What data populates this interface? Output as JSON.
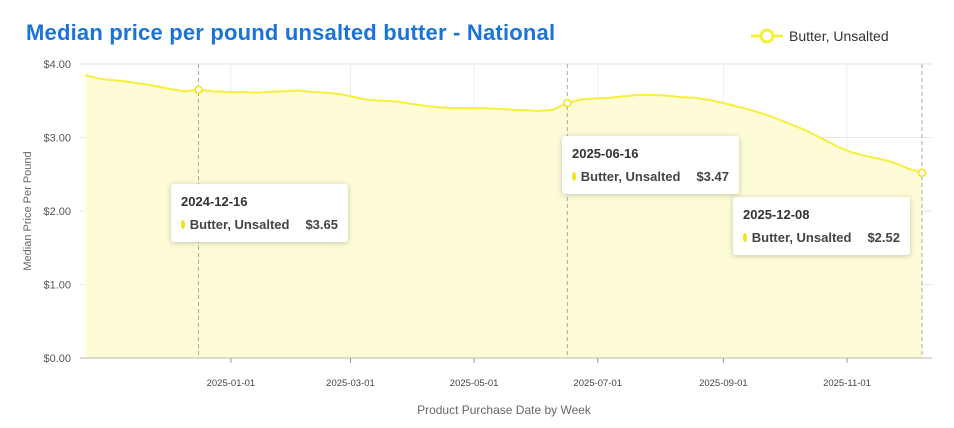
{
  "title": "Median price per pound unsalted butter - National",
  "legend": {
    "label": "Butter, Unsalted",
    "icon": "circle-line-marker"
  },
  "colors": {
    "line": "#f7ef3d",
    "area": "#fdfcd6",
    "marker_fill": "#f2e418",
    "grid": "#e6e6e6",
    "title": "#1a73d9"
  },
  "tooltips": [
    {
      "date": "2024-12-16",
      "series": "Butter, Unsalted",
      "value": "$3.65"
    },
    {
      "date": "2025-06-16",
      "series": "Butter, Unsalted",
      "value": "$3.47"
    },
    {
      "date": "2025-12-08",
      "series": "Butter, Unsalted",
      "value": "$2.52"
    }
  ],
  "chart_data": {
    "type": "area",
    "xlabel": "Product Purchase Date by Week",
    "ylabel": "Median Price Per Pound",
    "x_ticks": [
      "2025-01-01",
      "2025-03-01",
      "2025-05-01",
      "2025-07-01",
      "2025-09-01",
      "2025-11-01"
    ],
    "y_ticks": [
      "$0.00",
      "$1.00",
      "$2.00",
      "$3.00",
      "$4.00"
    ],
    "ylim": [
      0,
      4
    ],
    "grid": true,
    "legend_position": "top-right",
    "highlighted": [
      {
        "date": "2024-12-16",
        "value": 3.65
      },
      {
        "date": "2025-06-16",
        "value": 3.47
      },
      {
        "date": "2025-12-08",
        "value": 2.52
      }
    ],
    "series": [
      {
        "name": "Butter, Unsalted",
        "points": [
          {
            "x": "2024-10-21",
            "y": 3.85
          },
          {
            "x": "2024-10-28",
            "y": 3.8
          },
          {
            "x": "2024-11-04",
            "y": 3.78
          },
          {
            "x": "2024-11-11",
            "y": 3.76
          },
          {
            "x": "2024-11-18",
            "y": 3.73
          },
          {
            "x": "2024-11-25",
            "y": 3.7
          },
          {
            "x": "2024-12-02",
            "y": 3.66
          },
          {
            "x": "2024-12-09",
            "y": 3.63
          },
          {
            "x": "2024-12-16",
            "y": 3.65
          },
          {
            "x": "2024-12-23",
            "y": 3.63
          },
          {
            "x": "2024-12-30",
            "y": 3.62
          },
          {
            "x": "2025-01-06",
            "y": 3.62
          },
          {
            "x": "2025-01-13",
            "y": 3.61
          },
          {
            "x": "2025-01-20",
            "y": 3.62
          },
          {
            "x": "2025-01-27",
            "y": 3.63
          },
          {
            "x": "2025-02-03",
            "y": 3.64
          },
          {
            "x": "2025-02-10",
            "y": 3.62
          },
          {
            "x": "2025-02-17",
            "y": 3.61
          },
          {
            "x": "2025-02-24",
            "y": 3.59
          },
          {
            "x": "2025-03-03",
            "y": 3.55
          },
          {
            "x": "2025-03-10",
            "y": 3.51
          },
          {
            "x": "2025-03-17",
            "y": 3.5
          },
          {
            "x": "2025-03-24",
            "y": 3.49
          },
          {
            "x": "2025-03-31",
            "y": 3.46
          },
          {
            "x": "2025-04-07",
            "y": 3.43
          },
          {
            "x": "2025-04-14",
            "y": 3.41
          },
          {
            "x": "2025-04-21",
            "y": 3.4
          },
          {
            "x": "2025-04-28",
            "y": 3.4
          },
          {
            "x": "2025-05-05",
            "y": 3.4
          },
          {
            "x": "2025-05-12",
            "y": 3.39
          },
          {
            "x": "2025-05-19",
            "y": 3.38
          },
          {
            "x": "2025-05-26",
            "y": 3.37
          },
          {
            "x": "2025-06-02",
            "y": 3.36
          },
          {
            "x": "2025-06-09",
            "y": 3.38
          },
          {
            "x": "2025-06-16",
            "y": 3.47
          },
          {
            "x": "2025-06-23",
            "y": 3.52
          },
          {
            "x": "2025-06-30",
            "y": 3.53
          },
          {
            "x": "2025-07-07",
            "y": 3.54
          },
          {
            "x": "2025-07-14",
            "y": 3.56
          },
          {
            "x": "2025-07-21",
            "y": 3.58
          },
          {
            "x": "2025-07-28",
            "y": 3.58
          },
          {
            "x": "2025-08-04",
            "y": 3.57
          },
          {
            "x": "2025-08-11",
            "y": 3.55
          },
          {
            "x": "2025-08-18",
            "y": 3.54
          },
          {
            "x": "2025-08-25",
            "y": 3.51
          },
          {
            "x": "2025-09-01",
            "y": 3.47
          },
          {
            "x": "2025-09-08",
            "y": 3.42
          },
          {
            "x": "2025-09-15",
            "y": 3.37
          },
          {
            "x": "2025-09-22",
            "y": 3.31
          },
          {
            "x": "2025-09-29",
            "y": 3.24
          },
          {
            "x": "2025-10-06",
            "y": 3.16
          },
          {
            "x": "2025-10-13",
            "y": 3.08
          },
          {
            "x": "2025-10-20",
            "y": 2.98
          },
          {
            "x": "2025-10-27",
            "y": 2.88
          },
          {
            "x": "2025-11-03",
            "y": 2.8
          },
          {
            "x": "2025-11-10",
            "y": 2.75
          },
          {
            "x": "2025-11-17",
            "y": 2.71
          },
          {
            "x": "2025-11-24",
            "y": 2.66
          },
          {
            "x": "2025-12-01",
            "y": 2.58
          },
          {
            "x": "2025-12-08",
            "y": 2.52
          }
        ]
      }
    ]
  }
}
